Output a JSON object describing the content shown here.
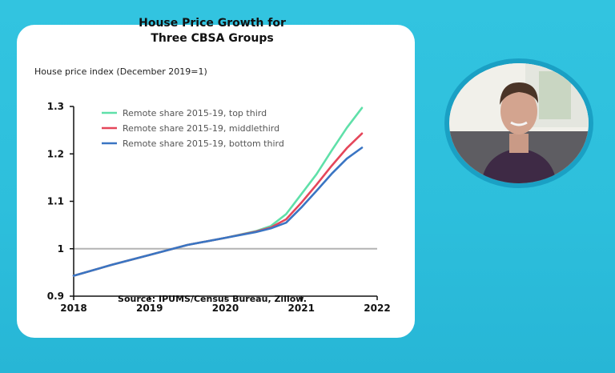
{
  "chart_data": {
    "type": "line",
    "title_lines": [
      "House Price Growth for",
      "Three CBSA Groups"
    ],
    "ylabel": "House price index (December 2019=1)",
    "source": "Source: IPUMS/Census Bureau, Zillow.",
    "xlim": [
      2018,
      2022
    ],
    "ylim": [
      0.9,
      1.3
    ],
    "x_ticks": [
      "2018",
      "2019",
      "2020",
      "2021",
      "2022"
    ],
    "y_ticks": [
      "0.9",
      "1",
      "1.1",
      "1.2",
      "1.3"
    ],
    "reference_line": 1,
    "legend_position": "top-left",
    "series": [
      {
        "name": "Remote share 2015-19, top third",
        "color": "#5fe0a9",
        "x": [
          2018.0,
          2018.5,
          2019.0,
          2019.5,
          2020.0,
          2020.4,
          2020.6,
          2020.8,
          2021.0,
          2021.2,
          2021.4,
          2021.6,
          2021.8
        ],
        "y": [
          0.943,
          0.966,
          0.987,
          1.008,
          1.023,
          1.037,
          1.048,
          1.073,
          1.115,
          1.157,
          1.207,
          1.255,
          1.297
        ]
      },
      {
        "name": "Remote share 2015-19, middlethird",
        "color": "#e5465a",
        "x": [
          2018.0,
          2018.5,
          2019.0,
          2019.5,
          2020.0,
          2020.4,
          2020.6,
          2020.8,
          2021.0,
          2021.2,
          2021.4,
          2021.6,
          2021.8
        ],
        "y": [
          0.943,
          0.966,
          0.987,
          1.008,
          1.023,
          1.036,
          1.045,
          1.062,
          1.097,
          1.135,
          1.175,
          1.212,
          1.243
        ]
      },
      {
        "name": "Remote share 2015-19, bottom third",
        "color": "#3a75c3",
        "x": [
          2018.0,
          2018.5,
          2019.0,
          2019.5,
          2020.0,
          2020.4,
          2020.6,
          2020.8,
          2021.0,
          2021.2,
          2021.4,
          2021.6,
          2021.8
        ],
        "y": [
          0.943,
          0.966,
          0.987,
          1.008,
          1.023,
          1.035,
          1.043,
          1.055,
          1.087,
          1.122,
          1.158,
          1.19,
          1.213
        ]
      }
    ]
  }
}
